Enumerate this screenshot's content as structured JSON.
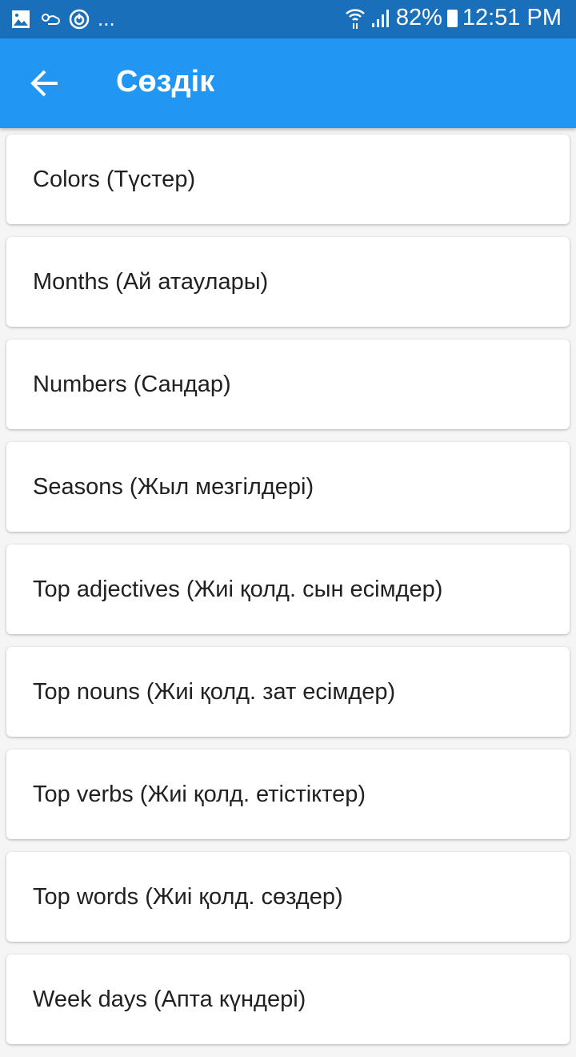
{
  "status_bar": {
    "icons_left": [
      "image-icon",
      "weather-icon",
      "sync-icon"
    ],
    "overflow": "...",
    "battery": "82%",
    "time": "12:51 PM"
  },
  "app_bar": {
    "title": "Сөздік",
    "back_icon": "arrow-left-icon"
  },
  "categories": [
    {
      "label": "Colors (Түстер)"
    },
    {
      "label": "Months (Ай атаулары)"
    },
    {
      "label": "Numbers (Сандар)"
    },
    {
      "label": "Seasons (Жыл мезгілдері)"
    },
    {
      "label": "Top adjectives (Жиі қолд. сын есімдер)"
    },
    {
      "label": "Top nouns (Жиі қолд. зат есімдер)"
    },
    {
      "label": "Top verbs (Жиі қолд. етістіктер)"
    },
    {
      "label": "Top words (Жиі қолд. сөздер)"
    },
    {
      "label": "Week days (Апта күндері)"
    }
  ],
  "colors": {
    "app_bar": "#2196f3",
    "status_bar": "#1a6fba"
  }
}
